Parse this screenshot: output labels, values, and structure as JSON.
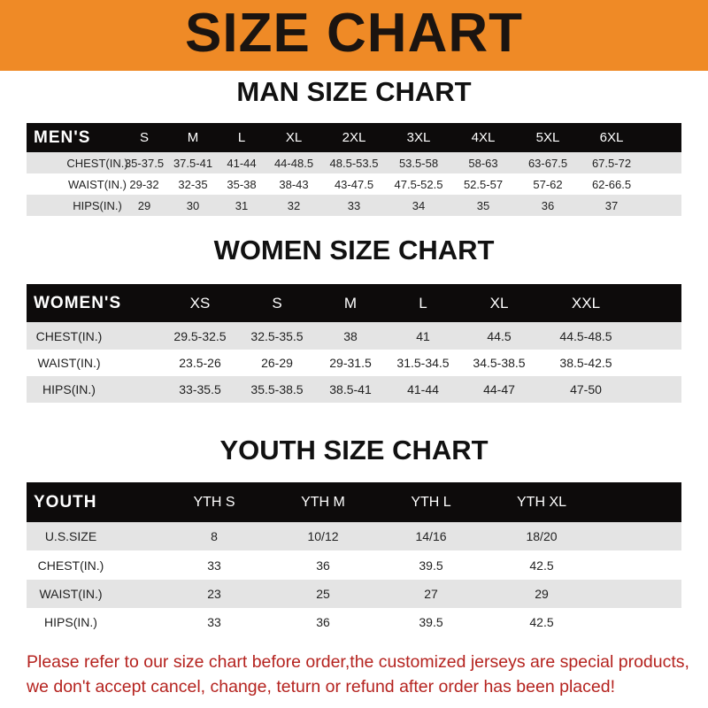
{
  "header": {
    "title": "SIZE CHART",
    "bg_color": "#ef8a26"
  },
  "men": {
    "title": "MAN SIZE CHART",
    "columns": [
      "MEN'S",
      "S",
      "M",
      "L",
      "XL",
      "2XL",
      "3XL",
      "4XL",
      "5XL",
      "6XL"
    ],
    "rows": [
      [
        "CHEST(IN.)",
        "35-37.5",
        "37.5-41",
        "41-44",
        "44-48.5",
        "48.5-53.5",
        "53.5-58",
        "58-63",
        "63-67.5",
        "67.5-72"
      ],
      [
        "WAIST(IN.)",
        "29-32",
        "32-35",
        "35-38",
        "38-43",
        "43-47.5",
        "47.5-52.5",
        "52.5-57",
        "57-62",
        "62-66.5"
      ],
      [
        "HIPS(IN.)",
        "29",
        "30",
        "31",
        "32",
        "33",
        "34",
        "35",
        "36",
        "37"
      ]
    ]
  },
  "women": {
    "title": "WOMEN SIZE CHART",
    "columns": [
      "WOMEN'S",
      "XS",
      "S",
      "M",
      "L",
      "XL",
      "XXL"
    ],
    "rows": [
      [
        "CHEST(IN.)",
        "29.5-32.5",
        "32.5-35.5",
        "38",
        "41",
        "44.5",
        "44.5-48.5"
      ],
      [
        "WAIST(IN.)",
        "23.5-26",
        "26-29",
        "29-31.5",
        "31.5-34.5",
        "34.5-38.5",
        "38.5-42.5"
      ],
      [
        "HIPS(IN.)",
        "33-35.5",
        "35.5-38.5",
        "38.5-41",
        "41-44",
        "44-47",
        "47-50"
      ]
    ]
  },
  "youth": {
    "title": "YOUTH SIZE CHART",
    "columns": [
      "YOUTH",
      "YTH S",
      "YTH M",
      "YTH L",
      "YTH XL"
    ],
    "rows": [
      [
        "U.S.SIZE",
        "8",
        "10/12",
        "14/16",
        "18/20"
      ],
      [
        "CHEST(IN.)",
        "33",
        "36",
        "39.5",
        "42.5"
      ],
      [
        "WAIST(IN.)",
        "23",
        "25",
        "27",
        "29"
      ],
      [
        "HIPS(IN.)",
        "33",
        "36",
        "39.5",
        "42.5"
      ]
    ]
  },
  "footer": {
    "line1": "Please refer to our size chart before order,the customized jerseys are special products,",
    "line2": "we don't accept cancel, change, teturn or refund after order has been placed!",
    "color": "#b5231f"
  }
}
